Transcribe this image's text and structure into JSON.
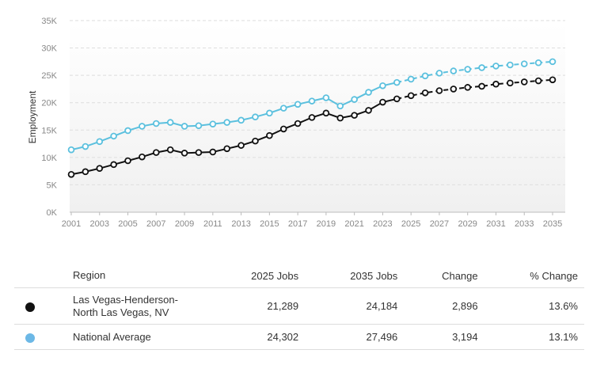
{
  "chart_data": {
    "type": "line",
    "title": "",
    "xlabel": "",
    "ylabel": "Employment",
    "ylim": [
      0,
      35000
    ],
    "yticks": [
      "0K",
      "5K",
      "10K",
      "15K",
      "20K",
      "25K",
      "30K",
      "35K"
    ],
    "xticks": [
      "2001",
      "2003",
      "2005",
      "2007",
      "2009",
      "2011",
      "2013",
      "2015",
      "2017",
      "2019",
      "2021",
      "2023",
      "2025",
      "2027",
      "2029",
      "2031",
      "2033",
      "2035"
    ],
    "x": [
      2001,
      2002,
      2003,
      2004,
      2005,
      2006,
      2007,
      2008,
      2009,
      2010,
      2011,
      2012,
      2013,
      2014,
      2015,
      2016,
      2017,
      2018,
      2019,
      2020,
      2021,
      2022,
      2023,
      2024,
      2025,
      2026,
      2027,
      2028,
      2029,
      2030,
      2031,
      2032,
      2033,
      2034,
      2035
    ],
    "projection_start": 2024,
    "grid": true,
    "legend": "none",
    "series": [
      {
        "name": "Las Vegas-Henderson-North Las Vegas, NV",
        "color": "#111111",
        "values": [
          6900,
          7400,
          8000,
          8700,
          9400,
          10100,
          10900,
          11400,
          10800,
          10900,
          11000,
          11600,
          12200,
          13000,
          14000,
          15200,
          16200,
          17300,
          18100,
          17200,
          17700,
          18600,
          20100,
          20700,
          21289,
          21800,
          22200,
          22500,
          22800,
          23000,
          23400,
          23600,
          23800,
          24000,
          24184
        ]
      },
      {
        "name": "National Average",
        "color": "#5bc0de",
        "values": [
          11400,
          12000,
          12900,
          13900,
          14900,
          15700,
          16200,
          16400,
          15700,
          15800,
          16100,
          16400,
          16800,
          17400,
          18100,
          19000,
          19700,
          20300,
          20900,
          19400,
          20600,
          21900,
          23100,
          23700,
          24302,
          24900,
          25400,
          25800,
          26100,
          26400,
          26700,
          26900,
          27100,
          27300,
          27496
        ]
      }
    ]
  },
  "table": {
    "headers": {
      "region": "Region",
      "jobs2025": "2025 Jobs",
      "jobs2035": "2035 Jobs",
      "change": "Change",
      "pct": "% Change"
    },
    "rows": [
      {
        "region_line1": "Las Vegas-Henderson-",
        "region_line2": "North Las Vegas, NV",
        "jobs2025": "21,289",
        "jobs2035": "24,184",
        "change": "2,896",
        "pct": "13.6%",
        "dot_color": "#111111"
      },
      {
        "region_line1": "National Average",
        "region_line2": "",
        "jobs2025": "24,302",
        "jobs2035": "27,496",
        "change": "3,194",
        "pct": "13.1%",
        "dot_color": "#6cb8e6"
      }
    ]
  }
}
